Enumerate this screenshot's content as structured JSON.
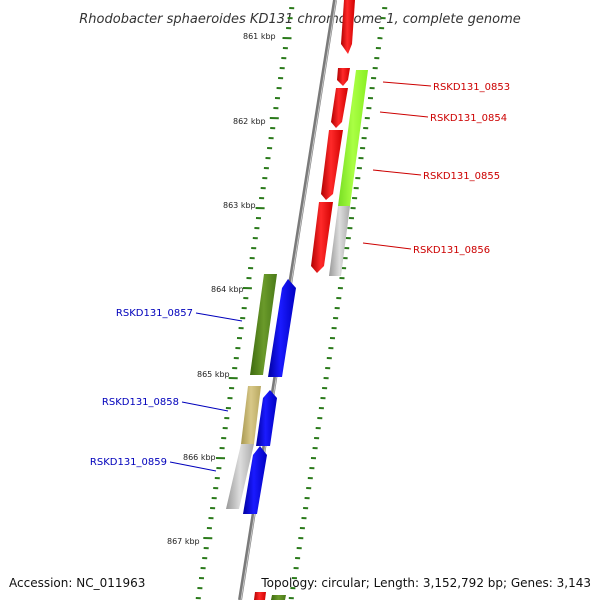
{
  "title": "Rhodobacter sphaeroides KD131 chromosome 1, complete genome",
  "footer": {
    "accession": "Accession: NC_011963",
    "summary": "Topology: circular; Length: 3,152,792 bp; Genes: 3,143"
  },
  "axis": {
    "ticks": [
      "861 kbp",
      "862 kbp",
      "863 kbp",
      "864 kbp",
      "865 kbp",
      "866 kbp",
      "867 kbp"
    ]
  },
  "gene_labels": {
    "right": [
      "RSKD131_0853",
      "RSKD131_0854",
      "RSKD131_0855",
      "RSKD131_0856"
    ],
    "left": [
      "RSKD131_0857",
      "RSKD131_0858",
      "RSKD131_0859"
    ]
  },
  "colors": {
    "forward_strand": "#ff0000",
    "reverse_strand": "#0000ff",
    "right_label": "#cc0000",
    "left_label": "#0000bb",
    "cog_lime": "#99ff33",
    "cog_olive": "#5a8a1e",
    "cog_khaki": "#c8b870",
    "cog_gray": "#b8b8b8",
    "axis_ticks": "#2a7a1a",
    "backbone": "#7a7a7a"
  }
}
